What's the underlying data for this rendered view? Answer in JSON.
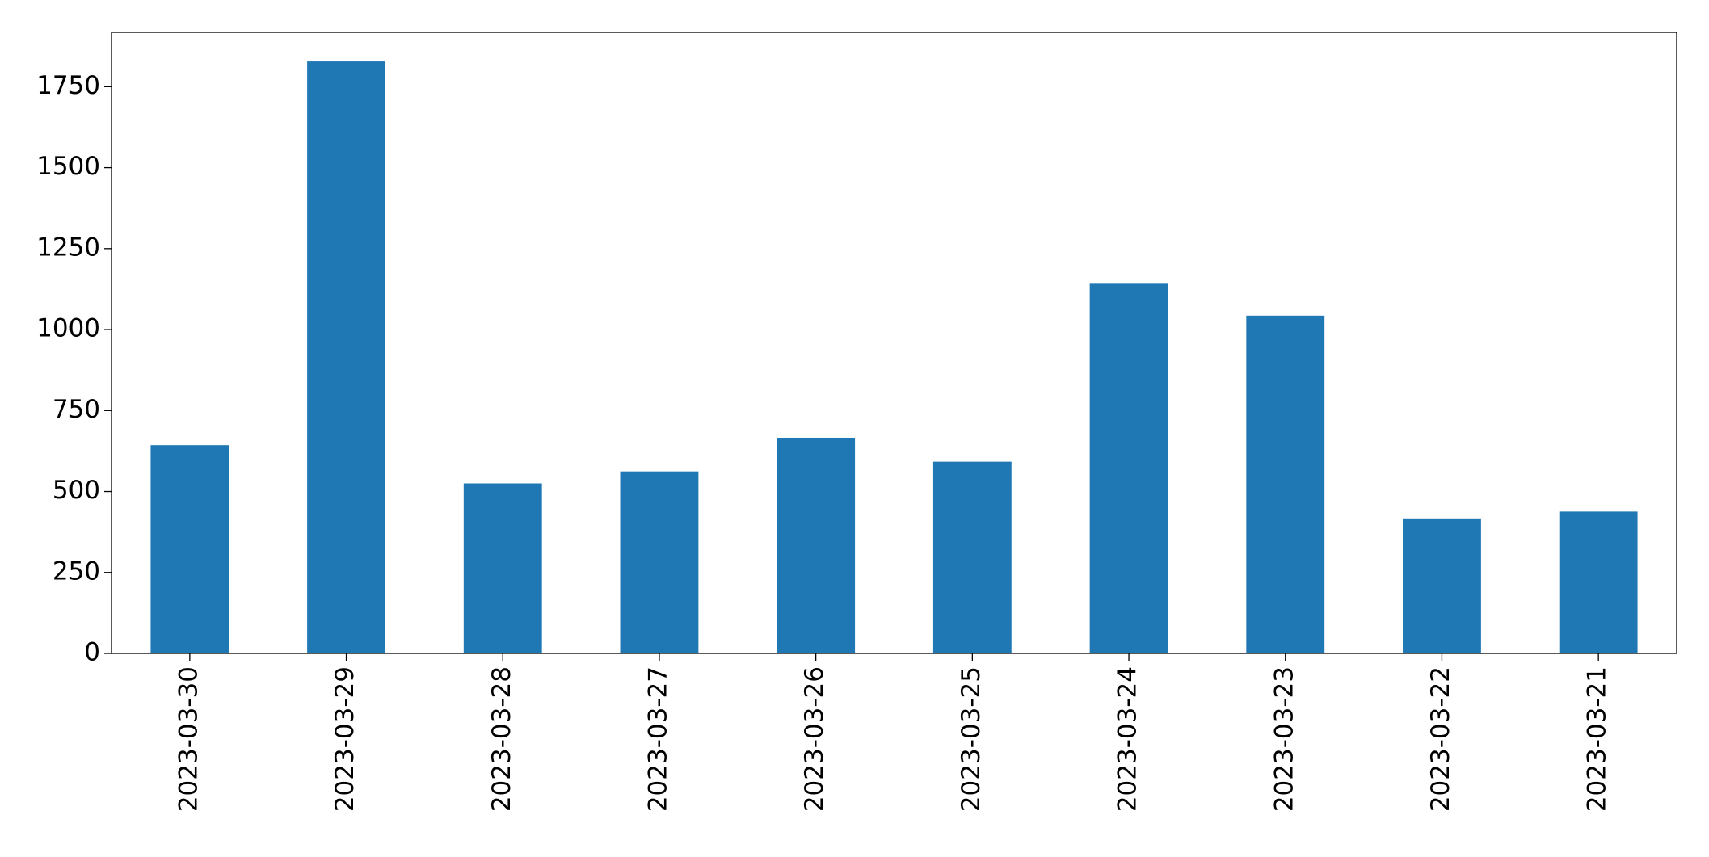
{
  "chart_data": {
    "type": "bar",
    "categories": [
      "2023-03-30",
      "2023-03-29",
      "2023-03-28",
      "2023-03-27",
      "2023-03-26",
      "2023-03-25",
      "2023-03-24",
      "2023-03-23",
      "2023-03-22",
      "2023-03-21"
    ],
    "values": [
      643,
      1828,
      525,
      562,
      666,
      592,
      1144,
      1043,
      417,
      438
    ],
    "color": "#1f77b4",
    "ylim": [
      0,
      1918
    ],
    "yticks": [
      0,
      250,
      500,
      750,
      1000,
      1250,
      1500,
      1750
    ],
    "grid": false
  }
}
